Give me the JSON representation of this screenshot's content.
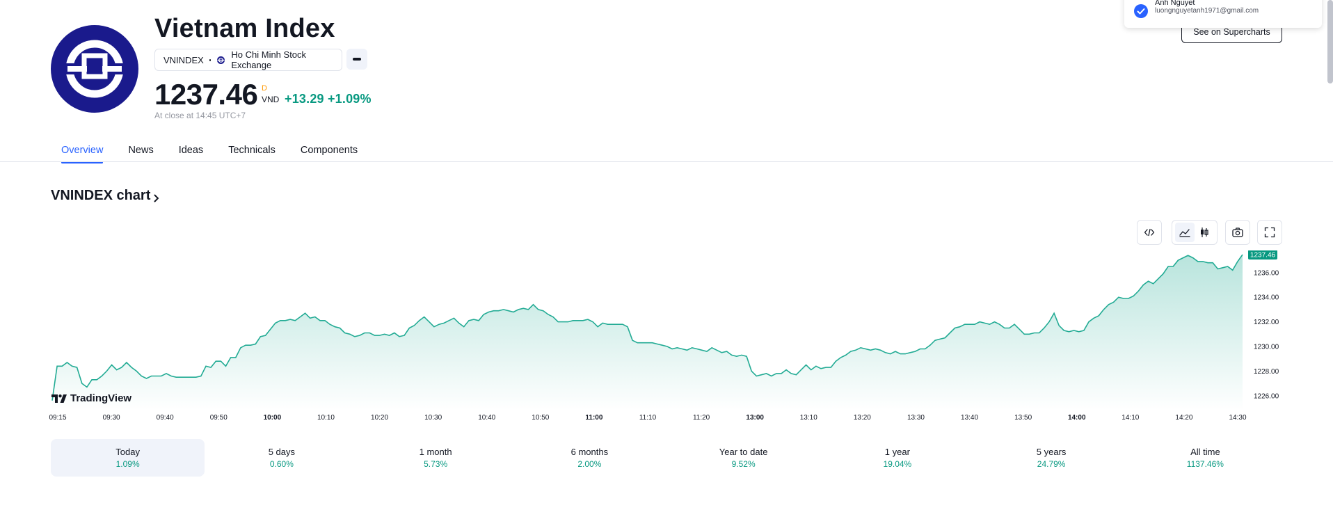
{
  "header": {
    "title": "Vietnam Index",
    "symbol": "VNINDEX",
    "exchange": "Ho Chi Minh Stock Exchange",
    "price": "1237.46",
    "price_flag": "D",
    "currency": "VND",
    "change": "+13.29",
    "change_percent": "+1.09%",
    "close_time": "At close at 14:45 UTC+7",
    "colors": {
      "logo_bg": "#1a1a8c",
      "positive": "#089981",
      "accent": "#2962ff",
      "flag": "#ff9800"
    }
  },
  "account": {
    "name": "Anh Nguyet",
    "email": "luongnguyetanh1971@gmail.com",
    "supercharts_label": "See on Supercharts"
  },
  "tabs": [
    {
      "label": "Overview",
      "active": true
    },
    {
      "label": "News",
      "active": false
    },
    {
      "label": "Ideas",
      "active": false
    },
    {
      "label": "Technicals",
      "active": false
    },
    {
      "label": "Components",
      "active": false
    }
  ],
  "chart_section": {
    "heading": "VNINDEX chart",
    "toolbar_icons": [
      "embed-icon",
      "area-chart-icon",
      "candles-icon",
      "camera-icon",
      "fullscreen-icon"
    ],
    "brand": "TradingView"
  },
  "chart_data": {
    "type": "area",
    "title": "",
    "xlabel": "",
    "ylabel": "",
    "x_ticks": [
      "09:15",
      "09:30",
      "09:40",
      "09:50",
      "10:00",
      "10:10",
      "10:20",
      "10:30",
      "10:40",
      "10:50",
      "11:00",
      "11:10",
      "11:20",
      "13:00",
      "13:10",
      "13:20",
      "13:30",
      "13:40",
      "13:50",
      "14:00",
      "14:10",
      "14:20",
      "14:30"
    ],
    "x_ticks_bold": [
      "10:00",
      "11:00",
      "13:00",
      "14:00"
    ],
    "y_ticks": [
      "1226.00",
      "1228.00",
      "1230.00",
      "1232.00",
      "1234.00",
      "1236.00"
    ],
    "ylim": [
      1224.8,
      1237.8
    ],
    "last_value_label": "1237.46",
    "grid": false,
    "series": [
      {
        "color": "#22ab94",
        "values": [
          1225.6,
          1228.4,
          1228.4,
          1228.7,
          1228.4,
          1228.3,
          1227.0,
          1226.7,
          1227.3,
          1227.3,
          1227.6,
          1228.0,
          1228.5,
          1228.1,
          1228.3,
          1228.7,
          1228.3,
          1228.0,
          1227.6,
          1227.4,
          1227.6,
          1227.6,
          1227.6,
          1227.8,
          1227.6,
          1227.5,
          1227.5,
          1227.5,
          1227.5,
          1227.5,
          1227.6,
          1228.4,
          1228.3,
          1228.8,
          1228.8,
          1228.4,
          1229.1,
          1229.1,
          1229.9,
          1230.1,
          1230.1,
          1230.2,
          1230.8,
          1230.9,
          1231.4,
          1231.9,
          1232.1,
          1232.1,
          1232.2,
          1232.1,
          1232.4,
          1232.7,
          1232.3,
          1232.4,
          1232.1,
          1232.1,
          1231.8,
          1231.6,
          1231.5,
          1231.1,
          1231.0,
          1230.8,
          1230.9,
          1231.1,
          1231.1,
          1230.9,
          1230.9,
          1231.0,
          1230.9,
          1231.1,
          1230.8,
          1230.9,
          1231.5,
          1231.7,
          1232.1,
          1232.4,
          1232.0,
          1231.6,
          1231.8,
          1231.9,
          1232.1,
          1232.3,
          1231.9,
          1231.6,
          1232.1,
          1232.2,
          1232.1,
          1232.6,
          1232.8,
          1232.9,
          1232.9,
          1233.0,
          1232.9,
          1232.8,
          1233.0,
          1233.1,
          1233.0,
          1233.4,
          1233.0,
          1232.9,
          1232.6,
          1232.4,
          1232.0,
          1232.0,
          1232.0,
          1232.1,
          1232.1,
          1232.1,
          1232.2,
          1232.0,
          1231.6,
          1231.9,
          1231.8,
          1231.8,
          1231.8,
          1231.8,
          1231.6,
          1230.5,
          1230.3,
          1230.3,
          1230.3,
          1230.3,
          1230.2,
          1230.1,
          1230.0,
          1229.8,
          1229.9,
          1229.8,
          1229.7,
          1229.9,
          1229.8,
          1229.7,
          1229.6,
          1229.9,
          1229.7,
          1229.5,
          1229.6,
          1229.3,
          1229.2,
          1229.3,
          1229.2,
          1228.0,
          1227.6,
          1227.7,
          1227.8,
          1227.6,
          1227.8,
          1227.8,
          1228.1,
          1227.8,
          1227.7,
          1228.1,
          1228.5,
          1228.1,
          1228.4,
          1228.2,
          1228.3,
          1228.3,
          1228.8,
          1229.1,
          1229.3,
          1229.6,
          1229.7,
          1229.9,
          1229.8,
          1229.7,
          1229.8,
          1229.7,
          1229.5,
          1229.4,
          1229.6,
          1229.4,
          1229.4,
          1229.5,
          1229.6,
          1229.8,
          1229.8,
          1230.1,
          1230.5,
          1230.6,
          1230.7,
          1231.1,
          1231.5,
          1231.6,
          1231.8,
          1231.8,
          1231.8,
          1232.0,
          1231.9,
          1231.8,
          1232.0,
          1231.8,
          1231.5,
          1231.5,
          1231.8,
          1231.4,
          1231.0,
          1231.0,
          1231.1,
          1231.1,
          1231.5,
          1232.0,
          1232.7,
          1231.7,
          1231.3,
          1231.2,
          1231.3,
          1231.2,
          1231.3,
          1232.0,
          1232.3,
          1232.5,
          1233.0,
          1233.4,
          1233.6,
          1234.0,
          1233.9,
          1233.9,
          1234.1,
          1234.5,
          1235.0,
          1235.3,
          1235.1,
          1235.5,
          1235.9,
          1236.5,
          1236.5,
          1237.0,
          1237.2,
          1237.4,
          1237.2,
          1236.9,
          1236.9,
          1236.8,
          1236.8,
          1236.3,
          1236.4,
          1236.5,
          1236.2,
          1236.9,
          1237.46
        ]
      }
    ]
  },
  "periods": [
    {
      "label": "Today",
      "value": "1.09%",
      "active": true
    },
    {
      "label": "5 days",
      "value": "0.60%",
      "active": false
    },
    {
      "label": "1 month",
      "value": "5.73%",
      "active": false
    },
    {
      "label": "6 months",
      "value": "2.00%",
      "active": false
    },
    {
      "label": "Year to date",
      "value": "9.52%",
      "active": false
    },
    {
      "label": "1 year",
      "value": "19.04%",
      "active": false
    },
    {
      "label": "5 years",
      "value": "24.79%",
      "active": false
    },
    {
      "label": "All time",
      "value": "1137.46%",
      "active": false
    }
  ]
}
